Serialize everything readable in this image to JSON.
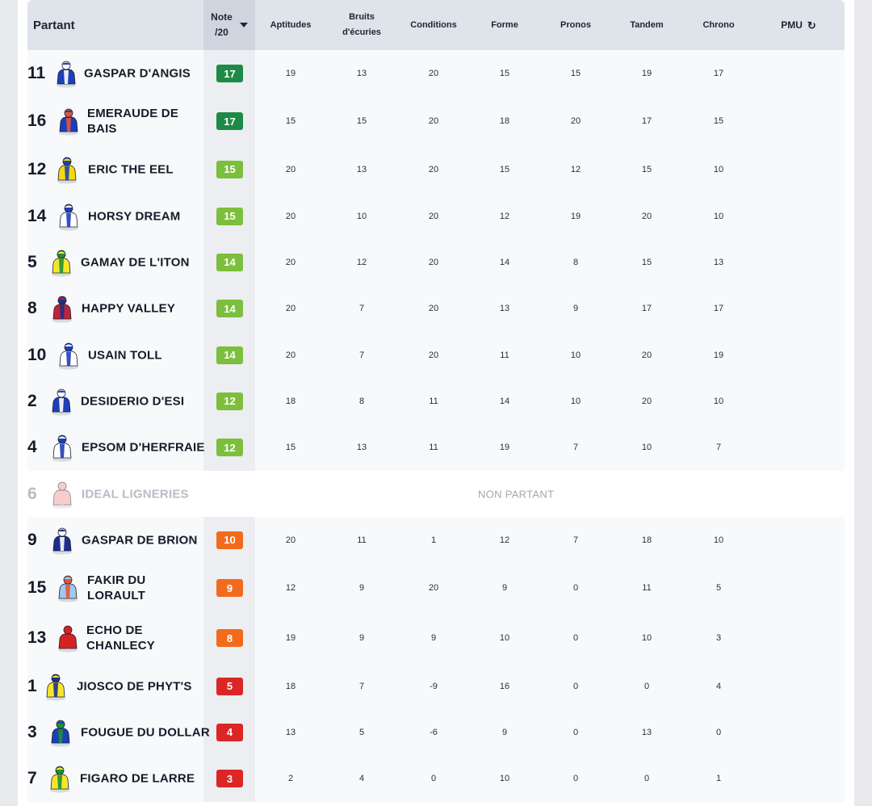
{
  "headers": {
    "partant": "Partant",
    "note_line1": "Note",
    "note_line2": "/20",
    "aptitudes": "Aptitudes",
    "bruits_line1": "Bruits",
    "bruits_line2": "d'écuries",
    "conditions": "Conditions",
    "forme": "Forme",
    "pronos": "Pronos",
    "tandem": "Tandem",
    "chrono": "Chrono",
    "pmu": "PMU"
  },
  "colors": {
    "note_dark_green": "#1e8a47",
    "note_green": "#7cbf3c",
    "note_orange": "#f26b1d",
    "note_red": "#dc2626"
  },
  "runners": [
    {
      "num": "11",
      "name1": "GASPAR D'ANGIS",
      "name2": "",
      "note": "17",
      "level": "dark_green",
      "aptitudes": "19",
      "bruits": "13",
      "conditions": "20",
      "forme": "15",
      "pronos": "15",
      "tandem": "19",
      "chrono": "17"
    },
    {
      "num": "16",
      "name1": "EMERAUDE DE",
      "name2": "BAIS",
      "note": "17",
      "level": "dark_green",
      "aptitudes": "15",
      "bruits": "15",
      "conditions": "20",
      "forme": "18",
      "pronos": "20",
      "tandem": "17",
      "chrono": "15"
    },
    {
      "num": "12",
      "name1": "ERIC THE EEL",
      "name2": "",
      "note": "15",
      "level": "green",
      "aptitudes": "20",
      "bruits": "13",
      "conditions": "20",
      "forme": "15",
      "pronos": "12",
      "tandem": "15",
      "chrono": "10"
    },
    {
      "num": "14",
      "name1": "HORSY DREAM",
      "name2": "",
      "note": "15",
      "level": "green",
      "aptitudes": "20",
      "bruits": "10",
      "conditions": "20",
      "forme": "12",
      "pronos": "19",
      "tandem": "20",
      "chrono": "10"
    },
    {
      "num": "5",
      "name1": "GAMAY DE L'ITON",
      "name2": "",
      "note": "14",
      "level": "green",
      "aptitudes": "20",
      "bruits": "12",
      "conditions": "20",
      "forme": "14",
      "pronos": "8",
      "tandem": "15",
      "chrono": "13"
    },
    {
      "num": "8",
      "name1": "HAPPY VALLEY",
      "name2": "",
      "note": "14",
      "level": "green",
      "aptitudes": "20",
      "bruits": "7",
      "conditions": "20",
      "forme": "13",
      "pronos": "9",
      "tandem": "17",
      "chrono": "17"
    },
    {
      "num": "10",
      "name1": "USAIN TOLL",
      "name2": "",
      "note": "14",
      "level": "green",
      "aptitudes": "20",
      "bruits": "7",
      "conditions": "20",
      "forme": "11",
      "pronos": "10",
      "tandem": "20",
      "chrono": "19"
    },
    {
      "num": "2",
      "name1": "DESIDERIO D'ESI",
      "name2": "",
      "note": "12",
      "level": "green",
      "aptitudes": "18",
      "bruits": "8",
      "conditions": "11",
      "forme": "14",
      "pronos": "10",
      "tandem": "20",
      "chrono": "10"
    },
    {
      "num": "4",
      "name1": "EPSOM D'HERFRAIE",
      "name2": "",
      "note": "12",
      "level": "green",
      "aptitudes": "15",
      "bruits": "13",
      "conditions": "11",
      "forme": "19",
      "pronos": "7",
      "tandem": "10",
      "chrono": "7"
    },
    {
      "num": "6",
      "name1": "IDEAL LIGNERIES",
      "name2": "",
      "status": "NON PARTANT"
    },
    {
      "num": "9",
      "name1": "GASPAR DE BRION",
      "name2": "",
      "note": "10",
      "level": "orange",
      "aptitudes": "20",
      "bruits": "11",
      "conditions": "1",
      "forme": "12",
      "pronos": "7",
      "tandem": "18",
      "chrono": "10"
    },
    {
      "num": "15",
      "name1": "FAKIR DU",
      "name2": "LORAULT",
      "note": "9",
      "level": "orange",
      "aptitudes": "12",
      "bruits": "9",
      "conditions": "20",
      "forme": "9",
      "pronos": "0",
      "tandem": "11",
      "chrono": "5"
    },
    {
      "num": "13",
      "name1": "ECHO DE",
      "name2": "CHANLECY",
      "note": "8",
      "level": "orange",
      "aptitudes": "19",
      "bruits": "9",
      "conditions": "9",
      "forme": "10",
      "pronos": "0",
      "tandem": "10",
      "chrono": "3"
    },
    {
      "num": "1",
      "name1": "JIOSCO DE PHYT'S",
      "name2": "",
      "note": "5",
      "level": "red",
      "aptitudes": "18",
      "bruits": "7",
      "conditions": "-9",
      "forme": "16",
      "pronos": "0",
      "tandem": "0",
      "chrono": "4"
    },
    {
      "num": "3",
      "name1": "FOUGUE DU DOLLAR",
      "name2": "",
      "note": "4",
      "level": "red",
      "aptitudes": "13",
      "bruits": "5",
      "conditions": "-6",
      "forme": "9",
      "pronos": "0",
      "tandem": "13",
      "chrono": "0"
    },
    {
      "num": "7",
      "name1": "FIGARO DE LARRE",
      "name2": "",
      "note": "3",
      "level": "red",
      "aptitudes": "2",
      "bruits": "4",
      "conditions": "0",
      "forme": "10",
      "pronos": "0",
      "tandem": "0",
      "chrono": "1"
    }
  ]
}
